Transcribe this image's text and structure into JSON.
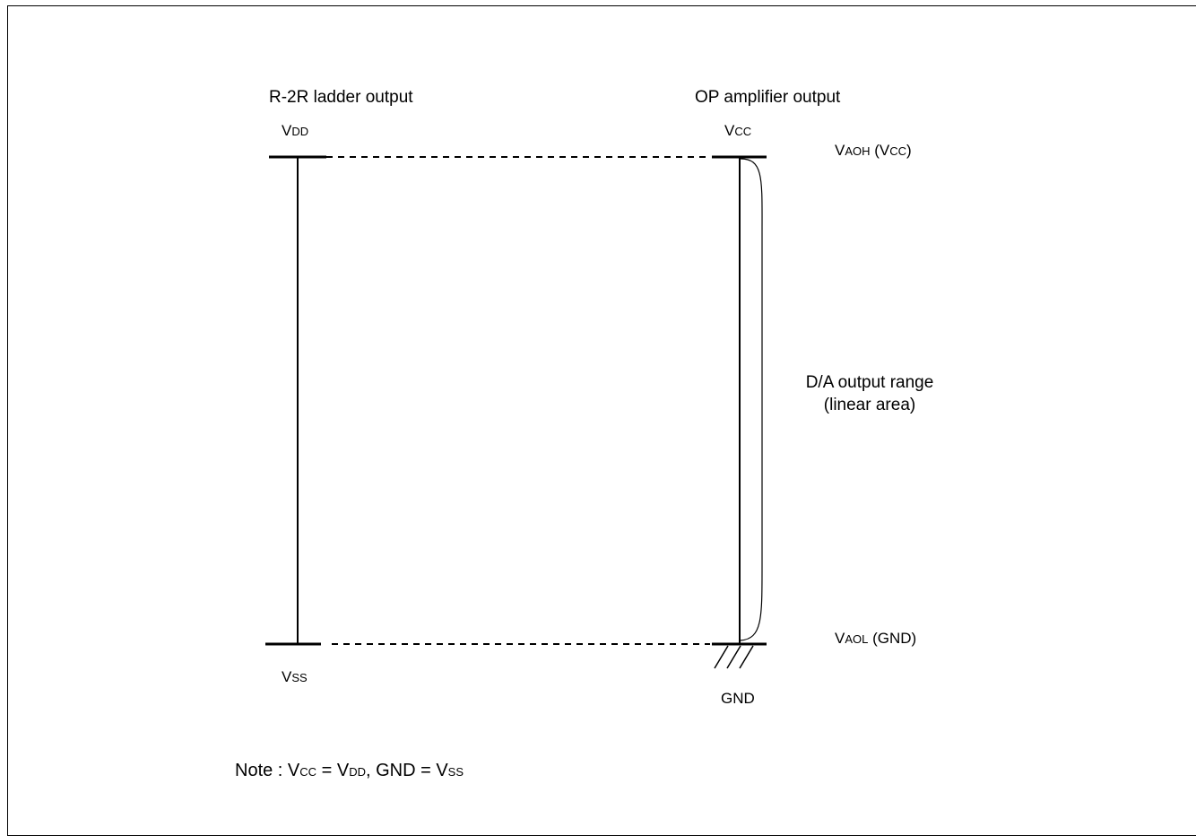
{
  "left_column": {
    "title": "R-2R ladder output",
    "top": {
      "main": "V",
      "sub": "DD"
    },
    "bottom": {
      "main": "V",
      "sub": "SS"
    }
  },
  "right_column": {
    "title": "OP amplifier output",
    "top": {
      "main": "V",
      "sub": "CC"
    },
    "bottom": "GND"
  },
  "levels": {
    "high": {
      "main": "V",
      "sub": "AOH",
      "paren_open": " (V",
      "paren_sub": "CC",
      "paren_close": ")"
    },
    "low": {
      "main": "V",
      "sub": "AOL",
      "rest": " (GND)"
    }
  },
  "range_label": {
    "line1": "D/A output range",
    "line2": "(linear area)"
  },
  "note": {
    "prefix": "Note : V",
    "sub1": "CC",
    "eq1": " = V",
    "sub2": "DD",
    "mid": ", GND = V",
    "sub3": "SS"
  }
}
